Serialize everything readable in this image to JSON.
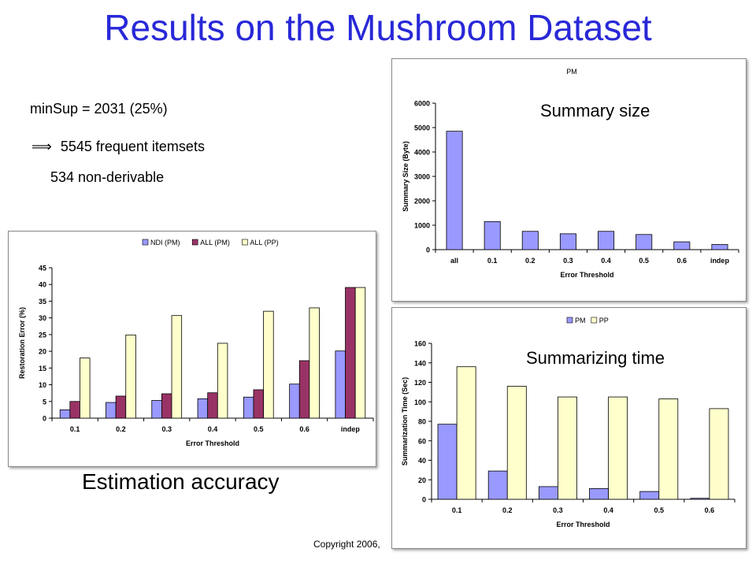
{
  "slide": {
    "title": "Results on the Mushroom Dataset",
    "info_line1": "minSup = 2031 (25%)",
    "info_arrow": "⟹",
    "info_line2": "5545 frequent itemsets",
    "info_line3": "534 non-derivable",
    "caption_accuracy": "Estimation accuracy",
    "label_summary_size": "Summary size",
    "label_summarizing_time": "Summarizing time",
    "copyright": "Copyright 2006,"
  },
  "chart_data": [
    {
      "id": "accuracy",
      "type": "bar",
      "categories": [
        "0.1",
        "0.2",
        "0.3",
        "0.4",
        "0.5",
        "0.6",
        "indep"
      ],
      "series": [
        {
          "name": "NDI (PM)",
          "color": "#9999ff",
          "values": [
            2.5,
            4.7,
            5.3,
            5.8,
            6.3,
            10.2,
            20.1
          ]
        },
        {
          "name": "ALL (PM)",
          "color": "#993366",
          "values": [
            5.0,
            6.6,
            7.3,
            7.6,
            8.5,
            17.2,
            39.1
          ]
        },
        {
          "name": "ALL (PP)",
          "color": "#ffffcc",
          "values": [
            18.0,
            24.9,
            30.7,
            22.4,
            32.0,
            33.0,
            39.1
          ]
        }
      ],
      "xlabel": "Error Threshold",
      "ylabel": "Restoration Error (%)",
      "ylim": [
        0,
        45
      ],
      "yticks": [
        0,
        5,
        10,
        15,
        20,
        25,
        30,
        35,
        40,
        45
      ],
      "legend": "top"
    },
    {
      "id": "size",
      "type": "bar",
      "title": "PM",
      "categories": [
        "all",
        "0.1",
        "0.2",
        "0.3",
        "0.4",
        "0.5",
        "0.6",
        "indep"
      ],
      "series": [
        {
          "color": "#9999ff",
          "values": [
            4850,
            1150,
            750,
            650,
            750,
            620,
            320,
            210
          ]
        }
      ],
      "xlabel": "Error Threshold",
      "ylabel": "Summary Size (Byte)",
      "ylim": [
        0,
        6000
      ],
      "yticks": [
        0,
        1000,
        2000,
        3000,
        4000,
        5000,
        6000
      ]
    },
    {
      "id": "time",
      "type": "bar",
      "categories": [
        "0.1",
        "0.2",
        "0.3",
        "0.4",
        "0.5",
        "0.6"
      ],
      "series": [
        {
          "name": "PM",
          "color": "#9999ff",
          "values": [
            77,
            29,
            13,
            11,
            8,
            1
          ]
        },
        {
          "name": "PP",
          "color": "#ffffcc",
          "values": [
            136,
            116,
            105,
            105,
            103,
            93
          ]
        }
      ],
      "xlabel": "Error Threshold",
      "ylabel": "Summarization Time (Sec)",
      "ylim": [
        0,
        160
      ],
      "yticks": [
        0,
        20,
        40,
        60,
        80,
        100,
        120,
        140,
        160
      ],
      "legend": "top"
    }
  ]
}
